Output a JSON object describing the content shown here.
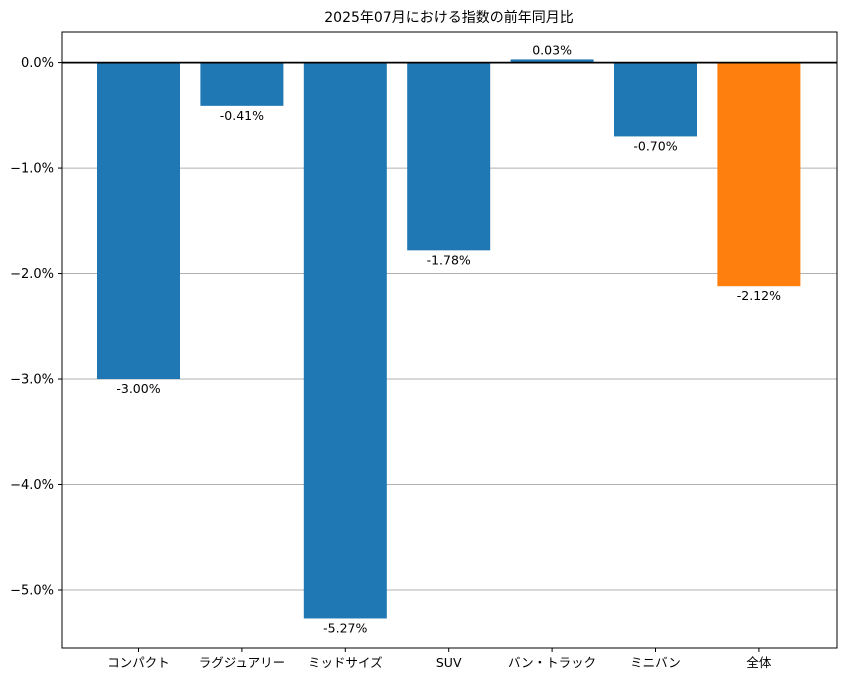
{
  "chart_data": {
    "type": "bar",
    "title": "2025年07月における指数の前年同月比",
    "xlabel": "",
    "ylabel": "",
    "categories": [
      "コンパクト",
      "ラグジュアリー",
      "ミッドサイズ",
      "SUV",
      "バン・トラック",
      "ミニバン",
      "全体"
    ],
    "values": [
      -3.0,
      -0.41,
      -5.27,
      -1.78,
      0.03,
      -0.7,
      -2.12
    ],
    "value_labels": [
      "-3.00%",
      "-0.41%",
      "-5.27%",
      "-1.78%",
      "0.03%",
      "-0.70%",
      "-2.12%"
    ],
    "colors": [
      "#1f77b4",
      "#1f77b4",
      "#1f77b4",
      "#1f77b4",
      "#1f77b4",
      "#1f77b4",
      "#ff7f0e"
    ],
    "ylim": [
      -5.55,
      0.29
    ],
    "yticks": [
      0,
      -1,
      -2,
      -3,
      -4,
      -5
    ],
    "ytick_labels": [
      "0.0%",
      "−1.0%",
      "−2.0%",
      "−3.0%",
      "−4.0%",
      "−5.0%"
    ],
    "grid": "horizontal"
  }
}
